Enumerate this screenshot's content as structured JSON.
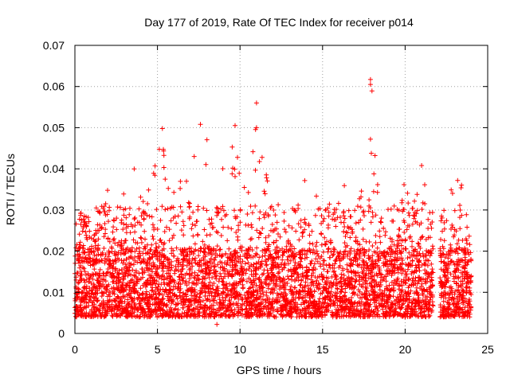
{
  "chart_data": {
    "type": "scatter",
    "title": "Day 177 of 2019, Rate Of TEC Index for receiver p014",
    "xlabel": "GPS time / hours",
    "ylabel": "ROTI / TECUs",
    "xlim": [
      0,
      25
    ],
    "ylim": [
      0,
      0.07
    ],
    "xticks": [
      0,
      5,
      10,
      15,
      20,
      25
    ],
    "xtick_labels": [
      "0",
      "5",
      "10",
      "15",
      "20",
      "25"
    ],
    "yticks": [
      0,
      0.01,
      0.02,
      0.03,
      0.04,
      0.05,
      0.06,
      0.07
    ],
    "ytick_labels": [
      "0",
      "0.01",
      "0.02",
      "0.03",
      "0.04",
      "0.05",
      "0.06",
      "0.07"
    ],
    "grid": true,
    "marker": "plus",
    "color": "#ff0000",
    "data_segments": [
      {
        "x_start": 0.0,
        "x_end": 21.7
      },
      {
        "x_start": 22.1,
        "x_end": 24.0
      }
    ],
    "series": [
      {
        "name": "p014",
        "summary": {
          "baseline_min": 0.004,
          "typical_median": 0.012,
          "typical_upper": 0.025,
          "overall_min": 0.002,
          "overall_max": 0.0617
        },
        "envelope": {
          "x": [
            0.0,
            0.5,
            1.0,
            1.5,
            2.0,
            2.5,
            3.0,
            3.5,
            4.0,
            4.5,
            5.0,
            5.5,
            6.0,
            6.5,
            7.0,
            7.5,
            8.0,
            8.5,
            9.0,
            9.5,
            10.0,
            10.5,
            11.0,
            11.5,
            12.0,
            12.5,
            13.0,
            13.5,
            14.0,
            14.5,
            15.0,
            15.5,
            16.0,
            16.5,
            17.0,
            17.5,
            18.0,
            18.5,
            19.0,
            19.5,
            20.0,
            20.5,
            21.0,
            21.5,
            22.2,
            22.5,
            23.0,
            23.5,
            24.0
          ],
          "y_max": [
            0.026,
            0.032,
            0.034,
            0.03,
            0.036,
            0.038,
            0.034,
            0.041,
            0.036,
            0.039,
            0.045,
            0.049,
            0.041,
            0.038,
            0.042,
            0.05,
            0.048,
            0.043,
            0.046,
            0.05,
            0.042,
            0.038,
            0.056,
            0.041,
            0.036,
            0.034,
            0.031,
            0.04,
            0.038,
            0.034,
            0.036,
            0.031,
            0.038,
            0.036,
            0.037,
            0.034,
            0.062,
            0.034,
            0.031,
            0.032,
            0.037,
            0.031,
            0.041,
            0.031,
            0.033,
            0.035,
            0.039,
            0.036,
            0.021
          ]
        },
        "extreme_points": [
          {
            "x": 5.3,
            "y": 0.0498
          },
          {
            "x": 7.6,
            "y": 0.0508
          },
          {
            "x": 9.7,
            "y": 0.0505
          },
          {
            "x": 11.0,
            "y": 0.056
          },
          {
            "x": 11.0,
            "y": 0.05
          },
          {
            "x": 17.9,
            "y": 0.0617
          },
          {
            "x": 17.9,
            "y": 0.0605
          },
          {
            "x": 17.9,
            "y": 0.0472
          },
          {
            "x": 8.6,
            "y": 0.0022
          },
          {
            "x": 21.0,
            "y": 0.0408
          }
        ]
      }
    ]
  }
}
